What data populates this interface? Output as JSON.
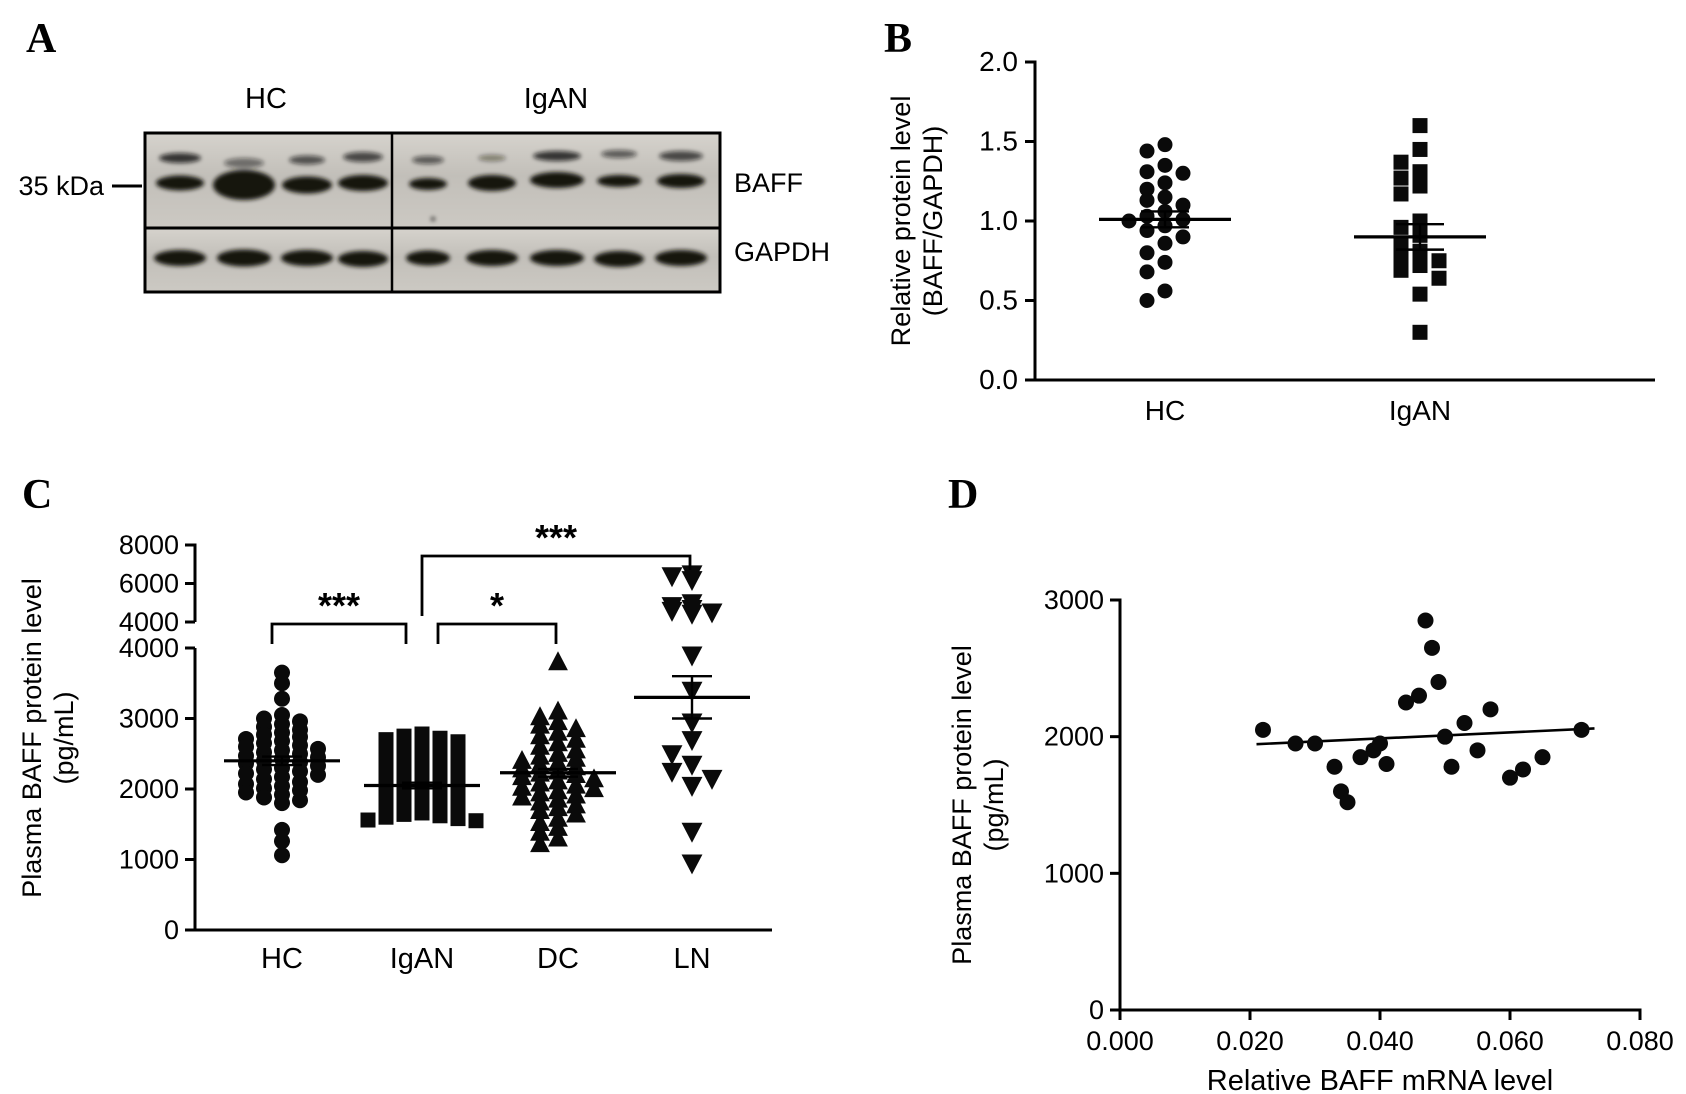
{
  "panels": {
    "a": {
      "label": "A",
      "kda_marker": "35 kDa",
      "group_labels": [
        "HC",
        "IgAN"
      ],
      "lane_counts": [
        4,
        5
      ],
      "band_labels": [
        "BAFF",
        "GAPDH"
      ]
    },
    "b": {
      "label": "B"
    },
    "c": {
      "label": "C"
    },
    "d": {
      "label": "D"
    }
  },
  "chart_data": [
    {
      "id": "B",
      "type": "scatter",
      "title": "",
      "ylabel": "Relative protein level (BAFF/GAPDH)",
      "ylabel_lines": [
        "Relative protein level",
        "(BAFF/GAPDH)"
      ],
      "ylim": [
        0,
        2.0
      ],
      "ytick_step": 0.5,
      "categories": [
        "HC",
        "IgAN"
      ],
      "groups": [
        {
          "name": "HC",
          "marker": "circle",
          "mean": 1.01,
          "sem": 0.05,
          "values": [
            1.48,
            1.44,
            1.35,
            1.31,
            1.3,
            1.24,
            1.2,
            1.15,
            1.13,
            1.1,
            1.06,
            1.03,
            1.01,
            1.0,
            0.97,
            0.94,
            0.9,
            0.86,
            0.8,
            0.74,
            0.68,
            0.56,
            0.5
          ]
        },
        {
          "name": "IgAN",
          "marker": "square",
          "mean": 0.9,
          "sem": 0.08,
          "values": [
            1.6,
            1.45,
            1.37,
            1.31,
            1.27,
            1.22,
            1.17,
            1.0,
            0.96,
            0.91,
            0.86,
            0.81,
            0.78,
            0.75,
            0.72,
            0.69,
            0.64,
            0.54,
            0.3
          ]
        }
      ]
    },
    {
      "id": "C",
      "type": "scatter",
      "title": "",
      "ylabel": "Plasma BAFF protein level (pg/mL)",
      "ylabel_lines": [
        "Plasma BAFF protein level",
        "(pg/mL)"
      ],
      "axis_lower": {
        "lim": [
          0,
          4000
        ],
        "ticks": [
          0,
          1000,
          2000,
          3000,
          4000
        ]
      },
      "axis_upper": {
        "lim": [
          4000,
          8000
        ],
        "ticks": [
          4000,
          6000,
          8000
        ]
      },
      "categories": [
        "HC",
        "IgAN",
        "DC",
        "LN"
      ],
      "groups": [
        {
          "name": "HC",
          "marker": "circle",
          "mean": 2400,
          "sem": 60,
          "values": [
            3650,
            3500,
            3280,
            3050,
            3000,
            2960,
            2920,
            2880,
            2840,
            2800,
            2770,
            2740,
            2710,
            2680,
            2650,
            2620,
            2600,
            2570,
            2550,
            2520,
            2500,
            2470,
            2450,
            2430,
            2400,
            2380,
            2360,
            2330,
            2300,
            2280,
            2250,
            2220,
            2200,
            2170,
            2140,
            2100,
            2070,
            2040,
            2010,
            1980,
            1950,
            1920,
            1880,
            1840,
            1800,
            1420,
            1260,
            1060
          ]
        },
        {
          "name": "IgAN",
          "marker": "square",
          "mean": 2050,
          "sem": 40,
          "values": [
            2780,
            2750,
            2720,
            2700,
            2670,
            2650,
            2620,
            2600,
            2570,
            2550,
            2520,
            2500,
            2480,
            2450,
            2430,
            2400,
            2380,
            2350,
            2330,
            2300,
            2280,
            2250,
            2230,
            2200,
            2180,
            2150,
            2130,
            2100,
            2080,
            2050,
            2030,
            2000,
            1980,
            1950,
            1930,
            1900,
            1880,
            1850,
            1830,
            1800,
            1780,
            1750,
            1730,
            1700,
            1680,
            1660,
            1640,
            1620,
            1600,
            1580,
            1560,
            1550
          ]
        },
        {
          "name": "DC",
          "marker": "triangle-up",
          "mean": 2230,
          "sem": 55,
          "values": [
            3800,
            3100,
            3020,
            2950,
            2900,
            2850,
            2800,
            2750,
            2700,
            2650,
            2600,
            2550,
            2500,
            2460,
            2430,
            2400,
            2370,
            2340,
            2310,
            2280,
            2250,
            2220,
            2200,
            2170,
            2140,
            2110,
            2080,
            2050,
            2020,
            2000,
            1970,
            1940,
            1910,
            1880,
            1850,
            1810,
            1770,
            1730,
            1690,
            1640,
            1580,
            1520,
            1450,
            1380,
            1300,
            1220
          ]
        },
        {
          "name": "LN",
          "marker": "triangle-down",
          "mean": 3300,
          "sem": 300,
          "values": [
            6500,
            6400,
            6200,
            5000,
            4850,
            4700,
            4600,
            4520,
            4450,
            3900,
            3400,
            2950,
            2700,
            2500,
            2350,
            2250,
            2150,
            2050,
            1400,
            950
          ]
        }
      ],
      "significance": [
        {
          "from": "HC",
          "to": "IgAN",
          "label": "***"
        },
        {
          "from": "IgAN",
          "to": "DC",
          "label": "*"
        },
        {
          "from": "IgAN",
          "to": "LN",
          "label": "***"
        }
      ]
    },
    {
      "id": "D",
      "type": "scatter",
      "title": "",
      "xlabel": "Relative BAFF mRNA level",
      "ylabel": "Plasma BAFF protein level (pg/mL)",
      "ylabel_lines": [
        "Plasma BAFF protein level",
        "(pg/mL)"
      ],
      "xlim": [
        0,
        0.08
      ],
      "xticks": [
        0,
        0.02,
        0.04,
        0.06,
        0.08
      ],
      "ylim": [
        0,
        3000
      ],
      "yticks": [
        0,
        1000,
        2000,
        3000
      ],
      "points": [
        [
          0.022,
          2050
        ],
        [
          0.027,
          1950
        ],
        [
          0.03,
          1950
        ],
        [
          0.033,
          1780
        ],
        [
          0.034,
          1600
        ],
        [
          0.035,
          1520
        ],
        [
          0.037,
          1850
        ],
        [
          0.039,
          1900
        ],
        [
          0.04,
          1950
        ],
        [
          0.041,
          1800
        ],
        [
          0.044,
          2250
        ],
        [
          0.046,
          2300
        ],
        [
          0.047,
          2850
        ],
        [
          0.048,
          2650
        ],
        [
          0.049,
          2400
        ],
        [
          0.05,
          2000
        ],
        [
          0.051,
          1780
        ],
        [
          0.053,
          2100
        ],
        [
          0.055,
          1900
        ],
        [
          0.057,
          2200
        ],
        [
          0.06,
          1700
        ],
        [
          0.062,
          1760
        ],
        [
          0.065,
          1850
        ],
        [
          0.071,
          2050
        ]
      ],
      "trend": {
        "x1": 0.021,
        "y1": 1945,
        "x2": 0.073,
        "y2": 2060
      }
    }
  ]
}
